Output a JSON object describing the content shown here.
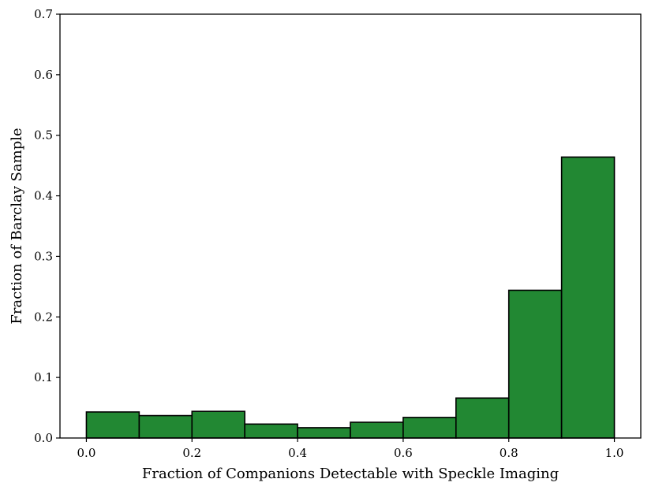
{
  "chart_data": {
    "type": "bar",
    "title": "",
    "xlabel": "Fraction of Companions Detectable with Speckle Imaging",
    "ylabel": "Fraction of Barclay Sample",
    "bin_edges": [
      0.0,
      0.1,
      0.2,
      0.3,
      0.4,
      0.5,
      0.6,
      0.7,
      0.8,
      0.9,
      1.0
    ],
    "values": [
      0.043,
      0.037,
      0.044,
      0.023,
      0.017,
      0.026,
      0.034,
      0.066,
      0.244,
      0.464
    ],
    "xlim": [
      -0.05,
      1.05
    ],
    "ylim": [
      0.0,
      0.7
    ],
    "x_ticks": [
      0.0,
      0.2,
      0.4,
      0.6,
      0.8,
      1.0
    ],
    "x_tick_labels": [
      "0.0",
      "0.2",
      "0.4",
      "0.6",
      "0.8",
      "1.0"
    ],
    "y_ticks": [
      0.0,
      0.1,
      0.2,
      0.3,
      0.4,
      0.5,
      0.6,
      0.7
    ],
    "y_tick_labels": [
      "0.0",
      "0.1",
      "0.2",
      "0.3",
      "0.4",
      "0.5",
      "0.6",
      "0.7"
    ],
    "bar_color": "#228833",
    "edge_color": "#000000",
    "grid": false,
    "legend": "none"
  }
}
